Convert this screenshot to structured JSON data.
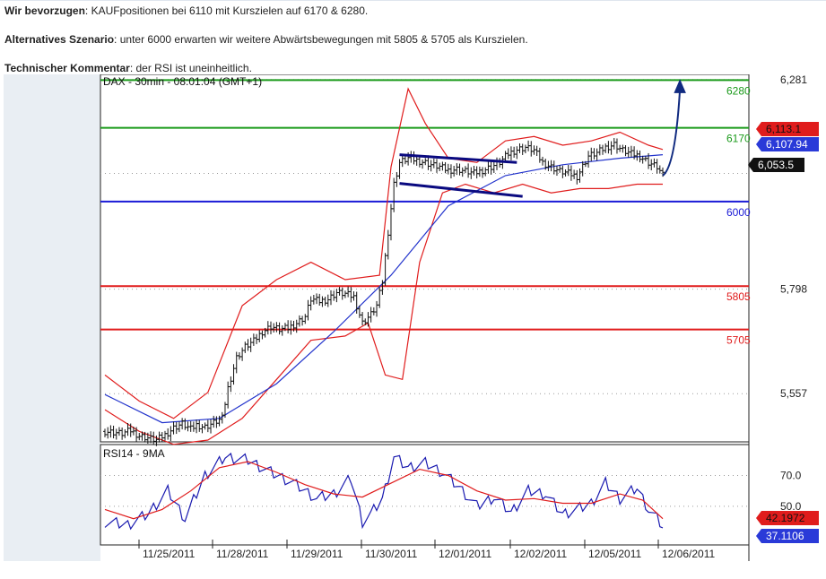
{
  "paragraphs": [
    {
      "label": "Wir bevorzugen",
      "sep": ": ",
      "text": "KAUFpositionen bei 6110 mit Kurszielen auf 6170 & 6280."
    },
    {
      "label": "Alternatives Szenario",
      "sep": ": ",
      "text": "unter 6000 erwarten wir weitere Abwärtsbewegungen mit 5805 & 5705 als Kurszielen."
    },
    {
      "label": "Technischer Kommentar",
      "sep": ": ",
      "text": "der RSI ist uneinheitlich."
    }
  ],
  "colors": {
    "green_line": "#1a9a1a",
    "blue_line": "#1a1ad6",
    "red_line": "#e01c1c",
    "bollinger": "#e01c1c",
    "moving_average": "#2233cc",
    "channel": "#0a0a80",
    "arrow": "#102a80",
    "rsi_line": "#1a1ab0",
    "rsi_ma": "#e01c1c",
    "price_bars": "#111111"
  },
  "chart_data": [
    {
      "type": "line",
      "title": "DAX - 30min - 08:01:04 (GMT+1)",
      "series_type": "ohlc-bars",
      "x_tick_labels": [
        "11/25/2011",
        "11/28/2011",
        "11/29/2011",
        "11/30/2011",
        "12/01/2011",
        "12/02/2011",
        "12/05/2011",
        "12/06/2011"
      ],
      "y_tick_labels": [
        "6,281",
        "5,798",
        "5,557"
      ],
      "ylim": [
        5450,
        6285
      ],
      "horizontal_levels": [
        {
          "label": "6280",
          "value": 6280,
          "color": "green"
        },
        {
          "label": "6170",
          "value": 6170,
          "color": "green"
        },
        {
          "label": "6000",
          "value": 6000,
          "color": "blue"
        },
        {
          "label": "5805",
          "value": 5805,
          "color": "red"
        },
        {
          "label": "5705",
          "value": 5705,
          "color": "red"
        }
      ],
      "last_value_tags": [
        {
          "label": "6,113.1",
          "value": 6113.1,
          "style": "red"
        },
        {
          "label": "6,107.94",
          "value": 6107.94,
          "style": "blue"
        },
        {
          "label": "6,053.5",
          "value": 6053.5,
          "style": "black"
        }
      ],
      "close_points": [
        [
          0,
          5470
        ],
        [
          3,
          5468
        ],
        [
          6,
          5465
        ],
        [
          9,
          5472
        ],
        [
          12,
          5460
        ],
        [
          15,
          5455
        ],
        [
          18,
          5450
        ],
        [
          21,
          5462
        ],
        [
          24,
          5478
        ],
        [
          27,
          5488
        ],
        [
          30,
          5475
        ],
        [
          32,
          5485
        ],
        [
          35,
          5480
        ],
        [
          38,
          5490
        ],
        [
          41,
          5500
        ],
        [
          43,
          5570
        ],
        [
          46,
          5640
        ],
        [
          49,
          5665
        ],
        [
          52,
          5678
        ],
        [
          55,
          5700
        ],
        [
          58,
          5712
        ],
        [
          61,
          5705
        ],
        [
          64,
          5708
        ],
        [
          67,
          5720
        ],
        [
          70,
          5735
        ],
        [
          72,
          5775
        ],
        [
          75,
          5770
        ],
        [
          78,
          5775
        ],
        [
          81,
          5790
        ],
        [
          84,
          5787
        ],
        [
          87,
          5780
        ],
        [
          90,
          5720
        ],
        [
          93,
          5740
        ],
        [
          95,
          5760
        ],
        [
          97,
          5815
        ],
        [
          99,
          5930
        ],
        [
          101,
          6040
        ],
        [
          103,
          6090
        ],
        [
          106,
          6100
        ],
        [
          109,
          6095
        ],
        [
          112,
          6090
        ],
        [
          114,
          6085
        ],
        [
          117,
          6080
        ],
        [
          120,
          6072
        ],
        [
          123,
          6075
        ],
        [
          126,
          6070
        ],
        [
          129,
          6065
        ],
        [
          132,
          6072
        ],
        [
          135,
          6080
        ],
        [
          138,
          6090
        ],
        [
          141,
          6110
        ],
        [
          144,
          6120
        ],
        [
          147,
          6125
        ],
        [
          150,
          6118
        ],
        [
          153,
          6090
        ],
        [
          156,
          6080
        ],
        [
          159,
          6070
        ],
        [
          162,
          6065
        ],
        [
          165,
          6058
        ],
        [
          169,
          6105
        ],
        [
          172,
          6112
        ],
        [
          175,
          6125
        ],
        [
          178,
          6132
        ],
        [
          181,
          6118
        ],
        [
          184,
          6110
        ],
        [
          187,
          6105
        ],
        [
          190,
          6090
        ],
        [
          193,
          6080
        ],
        [
          195,
          6060
        ]
      ],
      "moving_average": [
        [
          0,
          5555
        ],
        [
          20,
          5490
        ],
        [
          40,
          5500
        ],
        [
          60,
          5580
        ],
        [
          80,
          5700
        ],
        [
          100,
          5830
        ],
        [
          120,
          5990
        ],
        [
          140,
          6060
        ],
        [
          160,
          6085
        ],
        [
          180,
          6100
        ],
        [
          195,
          6108
        ]
      ],
      "bollinger_upper": [
        [
          0,
          5600
        ],
        [
          12,
          5540
        ],
        [
          24,
          5500
        ],
        [
          36,
          5560
        ],
        [
          48,
          5760
        ],
        [
          60,
          5820
        ],
        [
          72,
          5860
        ],
        [
          84,
          5820
        ],
        [
          96,
          5830
        ],
        [
          100,
          6080
        ],
        [
          106,
          6260
        ],
        [
          112,
          6180
        ],
        [
          120,
          6100
        ],
        [
          130,
          6090
        ],
        [
          140,
          6140
        ],
        [
          150,
          6150
        ],
        [
          160,
          6130
        ],
        [
          170,
          6140
        ],
        [
          180,
          6160
        ],
        [
          190,
          6130
        ],
        [
          195,
          6120
        ]
      ],
      "bollinger_lower": [
        [
          0,
          5520
        ],
        [
          12,
          5470
        ],
        [
          24,
          5440
        ],
        [
          36,
          5450
        ],
        [
          48,
          5500
        ],
        [
          60,
          5590
        ],
        [
          72,
          5680
        ],
        [
          84,
          5690
        ],
        [
          92,
          5720
        ],
        [
          98,
          5600
        ],
        [
          104,
          5590
        ],
        [
          110,
          5860
        ],
        [
          118,
          6020
        ],
        [
          126,
          6040
        ],
        [
          136,
          6020
        ],
        [
          146,
          6040
        ],
        [
          156,
          6020
        ],
        [
          166,
          6030
        ],
        [
          176,
          6030
        ],
        [
          186,
          6040
        ],
        [
          195,
          6040
        ]
      ],
      "channel": {
        "upper": [
          [
            103,
            6108
          ],
          [
            144,
            6090
          ]
        ],
        "lower": [
          [
            103,
            6042
          ],
          [
            146,
            6012
          ]
        ]
      },
      "forecast_arrow": {
        "from": [
          195,
          6060
        ],
        "to": [
          201,
          6280
        ]
      }
    },
    {
      "type": "line",
      "title": "RSI14 - 9MA",
      "y_tick_labels": [
        "70.0",
        "50.0"
      ],
      "ylim": [
        25,
        90
      ],
      "last_value_tags": [
        {
          "label": "42.1972",
          "value": 42.1972,
          "style": "red"
        },
        {
          "label": "37.1106",
          "value": 37.1106,
          "style": "blue"
        }
      ],
      "series": [
        {
          "name": "RSI14",
          "points": [
            [
              0,
              40
            ],
            [
              8,
              38
            ],
            [
              15,
              45
            ],
            [
              22,
              60
            ],
            [
              28,
              42
            ],
            [
              35,
              70
            ],
            [
              42,
              82
            ],
            [
              50,
              80
            ],
            [
              58,
              72
            ],
            [
              66,
              65
            ],
            [
              74,
              55
            ],
            [
              80,
              58
            ],
            [
              86,
              68
            ],
            [
              90,
              40
            ],
            [
              93,
              45
            ],
            [
              97,
              55
            ],
            [
              101,
              82
            ],
            [
              106,
              75
            ],
            [
              112,
              78
            ],
            [
              118,
              72
            ],
            [
              124,
              62
            ],
            [
              130,
              50
            ],
            [
              136,
              56
            ],
            [
              142,
              46
            ],
            [
              148,
              60
            ],
            [
              154,
              58
            ],
            [
              160,
              45
            ],
            [
              165,
              48
            ],
            [
              170,
              52
            ],
            [
              175,
              65
            ],
            [
              180,
              55
            ],
            [
              186,
              62
            ],
            [
              190,
              48
            ],
            [
              193,
              42
            ],
            [
              195,
              37
            ]
          ]
        },
        {
          "name": "9MA",
          "points": [
            [
              0,
              48
            ],
            [
              10,
              42
            ],
            [
              20,
              48
            ],
            [
              30,
              60
            ],
            [
              40,
              75
            ],
            [
              50,
              79
            ],
            [
              60,
              72
            ],
            [
              70,
              64
            ],
            [
              80,
              58
            ],
            [
              90,
              56
            ],
            [
              100,
              65
            ],
            [
              110,
              74
            ],
            [
              120,
              70
            ],
            [
              130,
              60
            ],
            [
              140,
              54
            ],
            [
              150,
              55
            ],
            [
              160,
              52
            ],
            [
              170,
              52
            ],
            [
              180,
              58
            ],
            [
              188,
              54
            ],
            [
              195,
              42
            ]
          ]
        }
      ]
    }
  ]
}
